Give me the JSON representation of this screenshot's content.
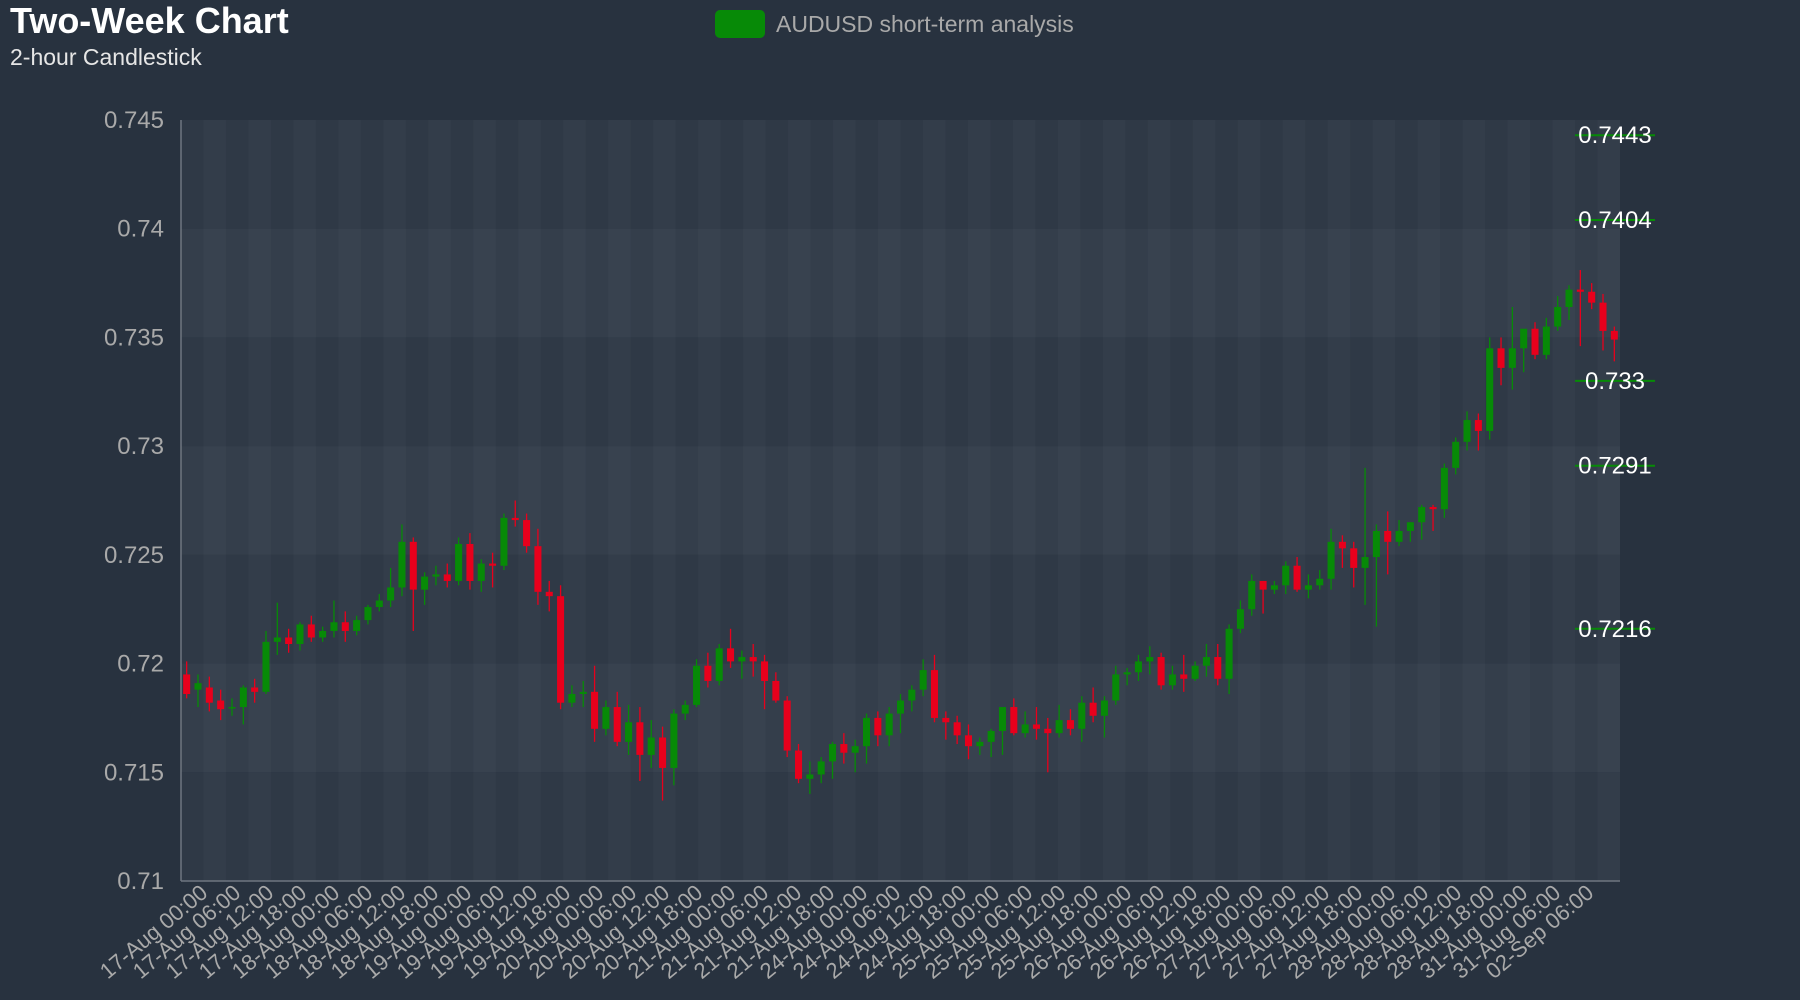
{
  "header": {
    "title": "Two-Week Chart",
    "subtitle": "2-hour Candlestick"
  },
  "legend": {
    "label": "AUDUSD short-term analysis",
    "color": "#078a07"
  },
  "colors": {
    "up": "#078a07",
    "down": "#e8001c",
    "background": "#28323f",
    "level": "#078a07"
  },
  "chart_data": {
    "type": "candlestick",
    "ylim": [
      0.71,
      0.745
    ],
    "y_ticks": [
      "0.745",
      "0.74",
      "0.735",
      "0.73",
      "0.725",
      "0.72",
      "0.715",
      "0.71"
    ],
    "x_labels": [
      "17-Aug 00:00",
      "17-Aug 06:00",
      "17-Aug 12:00",
      "17-Aug 18:00",
      "18-Aug 00:00",
      "18-Aug 06:00",
      "18-Aug 12:00",
      "18-Aug 18:00",
      "19-Aug 00:00",
      "19-Aug 06:00",
      "19-Aug 12:00",
      "19-Aug 18:00",
      "20-Aug 00:00",
      "20-Aug 06:00",
      "20-Aug 12:00",
      "20-Aug 18:00",
      "21-Aug 00:00",
      "21-Aug 06:00",
      "21-Aug 12:00",
      "21-Aug 18:00",
      "24-Aug 00:00",
      "24-Aug 06:00",
      "24-Aug 12:00",
      "24-Aug 18:00",
      "25-Aug 00:00",
      "25-Aug 06:00",
      "25-Aug 12:00",
      "25-Aug 18:00",
      "26-Aug 00:00",
      "26-Aug 06:00",
      "26-Aug 12:00",
      "26-Aug 18:00",
      "27-Aug 00:00",
      "27-Aug 06:00",
      "27-Aug 12:00",
      "27-Aug 18:00",
      "28-Aug 00:00",
      "28-Aug 06:00",
      "28-Aug 12:00",
      "28-Aug 18:00",
      "31-Aug 00:00",
      "31-Aug 06:00",
      "02-Sep 06:00"
    ],
    "levels": [
      {
        "value": 0.7443,
        "label": "0.7443"
      },
      {
        "value": 0.7404,
        "label": "0.7404"
      },
      {
        "value": 0.733,
        "label": "0.733"
      },
      {
        "value": 0.7291,
        "label": "0.7291"
      },
      {
        "value": 0.7216,
        "label": "0.7216"
      }
    ],
    "ohlc": [
      [
        0.7195,
        0.7201,
        0.7184,
        0.7186
      ],
      [
        0.7188,
        0.7195,
        0.718,
        0.7191
      ],
      [
        0.7189,
        0.7194,
        0.7178,
        0.7182
      ],
      [
        0.7183,
        0.7188,
        0.7174,
        0.7179
      ],
      [
        0.718,
        0.7184,
        0.7176,
        0.718
      ],
      [
        0.718,
        0.719,
        0.7172,
        0.7189
      ],
      [
        0.7189,
        0.7193,
        0.7182,
        0.7187
      ],
      [
        0.7187,
        0.7215,
        0.7186,
        0.721
      ],
      [
        0.721,
        0.7228,
        0.7204,
        0.7212
      ],
      [
        0.7212,
        0.7216,
        0.7205,
        0.7209
      ],
      [
        0.7209,
        0.7219,
        0.7206,
        0.7218
      ],
      [
        0.7218,
        0.7222,
        0.721,
        0.7212
      ],
      [
        0.7212,
        0.7217,
        0.721,
        0.7215
      ],
      [
        0.7215,
        0.7229,
        0.7212,
        0.7219
      ],
      [
        0.7219,
        0.7224,
        0.721,
        0.7215
      ],
      [
        0.7215,
        0.7222,
        0.7213,
        0.722
      ],
      [
        0.722,
        0.7227,
        0.7218,
        0.7226
      ],
      [
        0.7226,
        0.7232,
        0.7224,
        0.7229
      ],
      [
        0.7229,
        0.7244,
        0.7226,
        0.7235
      ],
      [
        0.7235,
        0.7264,
        0.7231,
        0.7256
      ],
      [
        0.7256,
        0.7258,
        0.7215,
        0.7234
      ],
      [
        0.7234,
        0.7242,
        0.7227,
        0.724
      ],
      [
        0.724,
        0.7245,
        0.7236,
        0.7241
      ],
      [
        0.7241,
        0.7246,
        0.7235,
        0.7238
      ],
      [
        0.7238,
        0.7258,
        0.7236,
        0.7255
      ],
      [
        0.7255,
        0.726,
        0.7234,
        0.7238
      ],
      [
        0.7238,
        0.7248,
        0.7233,
        0.7246
      ],
      [
        0.7246,
        0.7251,
        0.7235,
        0.7245
      ],
      [
        0.7245,
        0.7269,
        0.7243,
        0.7267
      ],
      [
        0.7267,
        0.7275,
        0.7263,
        0.7266
      ],
      [
        0.7266,
        0.7269,
        0.7251,
        0.7254
      ],
      [
        0.7254,
        0.7262,
        0.7227,
        0.7233
      ],
      [
        0.7233,
        0.7238,
        0.7224,
        0.7231
      ],
      [
        0.7231,
        0.7236,
        0.7179,
        0.7182
      ],
      [
        0.7182,
        0.719,
        0.718,
        0.7186
      ],
      [
        0.7186,
        0.7192,
        0.718,
        0.7187
      ],
      [
        0.7187,
        0.7199,
        0.7164,
        0.717
      ],
      [
        0.717,
        0.7183,
        0.7167,
        0.718
      ],
      [
        0.718,
        0.7187,
        0.7162,
        0.7164
      ],
      [
        0.7164,
        0.7181,
        0.7158,
        0.7173
      ],
      [
        0.7173,
        0.718,
        0.7146,
        0.7158
      ],
      [
        0.7158,
        0.7174,
        0.7152,
        0.7166
      ],
      [
        0.7166,
        0.7171,
        0.7137,
        0.7152
      ],
      [
        0.7152,
        0.7179,
        0.7144,
        0.7177
      ],
      [
        0.7177,
        0.7183,
        0.7174,
        0.7181
      ],
      [
        0.7181,
        0.7202,
        0.718,
        0.7199
      ],
      [
        0.7199,
        0.7205,
        0.7189,
        0.7192
      ],
      [
        0.7192,
        0.7209,
        0.719,
        0.7207
      ],
      [
        0.7207,
        0.7216,
        0.7198,
        0.7201
      ],
      [
        0.7201,
        0.7206,
        0.7193,
        0.7203
      ],
      [
        0.7203,
        0.7209,
        0.7194,
        0.7201
      ],
      [
        0.7201,
        0.7204,
        0.7179,
        0.7192
      ],
      [
        0.7192,
        0.7196,
        0.7182,
        0.7183
      ],
      [
        0.7183,
        0.7185,
        0.7157,
        0.716
      ],
      [
        0.716,
        0.7163,
        0.7145,
        0.7147
      ],
      [
        0.7147,
        0.7155,
        0.714,
        0.7149
      ],
      [
        0.7149,
        0.7157,
        0.7145,
        0.7155
      ],
      [
        0.7155,
        0.7164,
        0.7147,
        0.7163
      ],
      [
        0.7163,
        0.7168,
        0.7154,
        0.7159
      ],
      [
        0.7159,
        0.7165,
        0.715,
        0.7162
      ],
      [
        0.7162,
        0.7177,
        0.7154,
        0.7175
      ],
      [
        0.7175,
        0.7178,
        0.7162,
        0.7167
      ],
      [
        0.7167,
        0.718,
        0.7162,
        0.7177
      ],
      [
        0.7177,
        0.7186,
        0.7168,
        0.7183
      ],
      [
        0.7183,
        0.719,
        0.7178,
        0.7188
      ],
      [
        0.7188,
        0.7202,
        0.7185,
        0.7197
      ],
      [
        0.7197,
        0.7204,
        0.7173,
        0.7175
      ],
      [
        0.7175,
        0.7178,
        0.7165,
        0.7173
      ],
      [
        0.7173,
        0.7176,
        0.7163,
        0.7167
      ],
      [
        0.7167,
        0.7172,
        0.7156,
        0.7162
      ],
      [
        0.7162,
        0.7166,
        0.7158,
        0.7164
      ],
      [
        0.7164,
        0.717,
        0.7157,
        0.7169
      ],
      [
        0.7169,
        0.718,
        0.7158,
        0.718
      ],
      [
        0.718,
        0.7184,
        0.7167,
        0.7168
      ],
      [
        0.7168,
        0.7178,
        0.7166,
        0.7172
      ],
      [
        0.7172,
        0.718,
        0.7165,
        0.717
      ],
      [
        0.717,
        0.7175,
        0.715,
        0.7168
      ],
      [
        0.7168,
        0.7181,
        0.7166,
        0.7174
      ],
      [
        0.7174,
        0.7179,
        0.7167,
        0.717
      ],
      [
        0.717,
        0.7185,
        0.7164,
        0.7182
      ],
      [
        0.7182,
        0.7189,
        0.7173,
        0.7176
      ],
      [
        0.7176,
        0.7185,
        0.7166,
        0.7183
      ],
      [
        0.7183,
        0.7199,
        0.7181,
        0.7195
      ],
      [
        0.7195,
        0.7198,
        0.719,
        0.7196
      ],
      [
        0.7196,
        0.7204,
        0.7192,
        0.7201
      ],
      [
        0.7201,
        0.7208,
        0.7195,
        0.7203
      ],
      [
        0.7203,
        0.7205,
        0.7188,
        0.719
      ],
      [
        0.719,
        0.7199,
        0.7188,
        0.7195
      ],
      [
        0.7195,
        0.7204,
        0.7187,
        0.7193
      ],
      [
        0.7193,
        0.7201,
        0.7192,
        0.7199
      ],
      [
        0.7199,
        0.7209,
        0.7194,
        0.7203
      ],
      [
        0.7203,
        0.7209,
        0.719,
        0.7193
      ],
      [
        0.7193,
        0.7218,
        0.7186,
        0.7216
      ],
      [
        0.7216,
        0.7229,
        0.7214,
        0.7225
      ],
      [
        0.7225,
        0.7241,
        0.7222,
        0.7238
      ],
      [
        0.7238,
        0.7238,
        0.7223,
        0.7234
      ],
      [
        0.7234,
        0.7238,
        0.7232,
        0.7236
      ],
      [
        0.7236,
        0.7247,
        0.7232,
        0.7245
      ],
      [
        0.7245,
        0.7249,
        0.7233,
        0.7234
      ],
      [
        0.7234,
        0.7241,
        0.723,
        0.7236
      ],
      [
        0.7236,
        0.7243,
        0.7234,
        0.7239
      ],
      [
        0.7239,
        0.7262,
        0.7234,
        0.7256
      ],
      [
        0.7256,
        0.7259,
        0.7244,
        0.7253
      ],
      [
        0.7253,
        0.7256,
        0.7235,
        0.7244
      ],
      [
        0.7244,
        0.729,
        0.7227,
        0.7249
      ],
      [
        0.7249,
        0.7264,
        0.7217,
        0.7261
      ],
      [
        0.7261,
        0.727,
        0.7241,
        0.7256
      ],
      [
        0.7256,
        0.7266,
        0.7254,
        0.7261
      ],
      [
        0.7261,
        0.7265,
        0.7256,
        0.7265
      ],
      [
        0.7265,
        0.7273,
        0.7257,
        0.7272
      ],
      [
        0.7272,
        0.7273,
        0.7261,
        0.7271
      ],
      [
        0.7271,
        0.7292,
        0.7267,
        0.729
      ],
      [
        0.729,
        0.7304,
        0.7287,
        0.7302
      ],
      [
        0.7302,
        0.7316,
        0.7298,
        0.7312
      ],
      [
        0.7312,
        0.7315,
        0.7298,
        0.7307
      ],
      [
        0.7307,
        0.735,
        0.7303,
        0.7345
      ],
      [
        0.7345,
        0.735,
        0.7328,
        0.7336
      ],
      [
        0.7336,
        0.7364,
        0.7326,
        0.7345
      ],
      [
        0.7345,
        0.7352,
        0.7334,
        0.7354
      ],
      [
        0.7354,
        0.7357,
        0.734,
        0.7342
      ],
      [
        0.7342,
        0.7359,
        0.734,
        0.7355
      ],
      [
        0.7355,
        0.7369,
        0.7353,
        0.7364
      ],
      [
        0.7364,
        0.7374,
        0.7358,
        0.7372
      ],
      [
        0.7372,
        0.7381,
        0.7346,
        0.7371
      ],
      [
        0.7371,
        0.7375,
        0.7363,
        0.7366
      ],
      [
        0.7366,
        0.737,
        0.7344,
        0.7353
      ],
      [
        0.7353,
        0.7355,
        0.7339,
        0.7349
      ]
    ]
  }
}
